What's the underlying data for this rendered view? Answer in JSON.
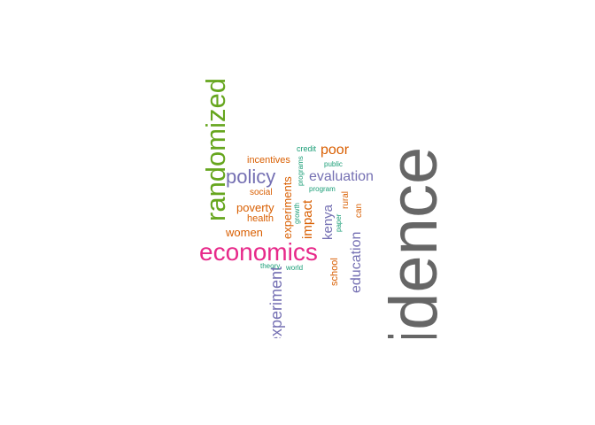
{
  "colors": {
    "gray": "#666666",
    "pink": "#e7298a",
    "green": "#66a61e",
    "purple": "#7570b3",
    "orange": "#d95f02",
    "teal": "#1b9e77"
  },
  "words": {
    "evidence": "evidence",
    "economics": "economics",
    "randomized": "randomized",
    "experiment": "experiment",
    "policy": "policy",
    "evaluation": "evaluation",
    "education": "education",
    "poor": "poor",
    "kenya": "kenya",
    "impact": "impact",
    "experiments": "experiments",
    "poverty": "poverty",
    "women": "women",
    "incentives": "incentives",
    "health": "health",
    "social": "social",
    "school": "school",
    "rural": "rural",
    "can": "can",
    "credit": "credit",
    "public": "public",
    "programs": "programs",
    "program": "program",
    "growth": "growth",
    "paper": "paper",
    "theory": "theory",
    "world": "world"
  }
}
